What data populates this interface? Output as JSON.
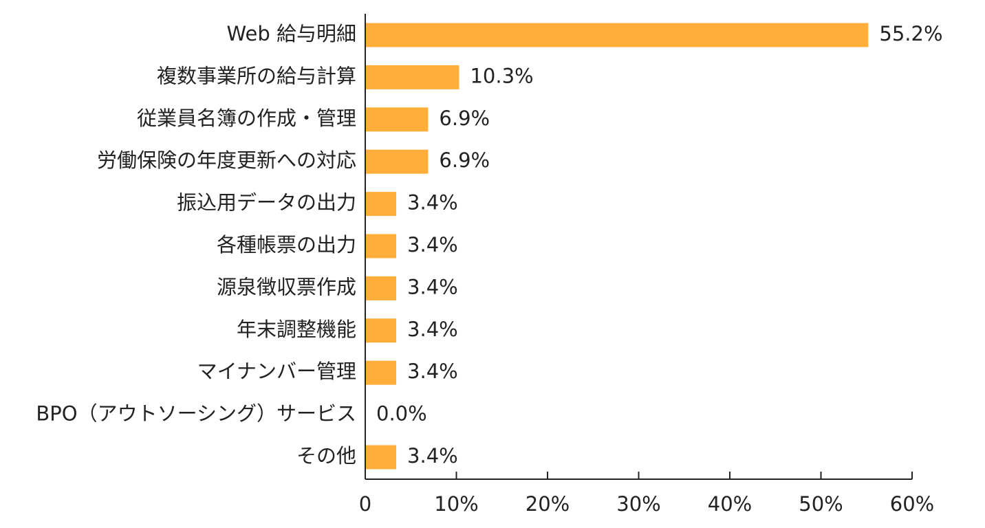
{
  "chart_data": {
    "type": "bar",
    "orientation": "horizontal",
    "categories": [
      "Web 給与明細",
      "複数事業所の給与計算",
      "従業員名簿の作成・管理",
      "労働保険の年度更新への対応",
      "振込用データの出力",
      "各種帳票の出力",
      "源泉徴収票作成",
      "年末調整機能",
      "マイナンバー管理",
      "BPO（アウトソーシング）サービス",
      "その他"
    ],
    "values": [
      55.2,
      10.3,
      6.9,
      6.9,
      3.4,
      3.4,
      3.4,
      3.4,
      3.4,
      0.0,
      3.4
    ],
    "value_labels": [
      "55.2%",
      "10.3%",
      "6.9%",
      "6.9%",
      "3.4%",
      "3.4%",
      "3.4%",
      "3.4%",
      "3.4%",
      "0.0%",
      "3.4%"
    ],
    "xlim": [
      0,
      60
    ],
    "x_ticks": [
      0,
      10,
      20,
      30,
      40,
      50,
      60
    ],
    "x_tick_labels": [
      "0",
      "10%",
      "20%",
      "30%",
      "40%",
      "50%",
      "60%"
    ],
    "bar_color": "#FFAE3A",
    "grid": false,
    "legend": "none",
    "title": "",
    "xlabel": "",
    "ylabel": ""
  }
}
